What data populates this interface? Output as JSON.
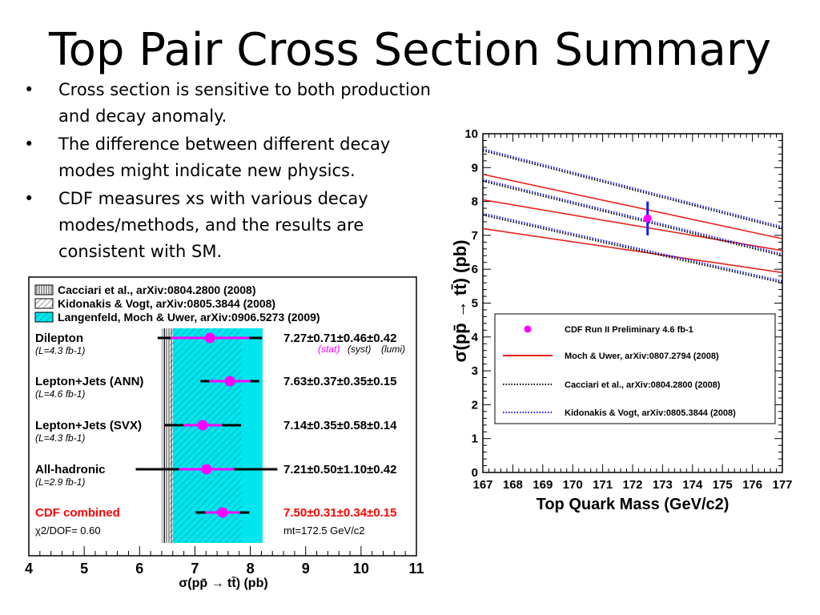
{
  "slide": {
    "title": "Top Pair Cross Section Summary",
    "bullets": [
      "Cross section is sensitive to both production and decay anomaly.",
      "The difference between different decay modes might indicate new physics.",
      "CDF measures xs with various decay modes/methods, and the results are consistent with SM."
    ]
  },
  "chart_data": [
    {
      "type": "scatter",
      "xlabel": "σ(pp̄ → tt̄) (pb)",
      "xlim": [
        4,
        11
      ],
      "x_ticks": [
        "4",
        "5",
        "6",
        "7",
        "8",
        "9",
        "10",
        "11"
      ],
      "legend": [
        {
          "label": "Cacciari et al., arXiv:0804.2800 (2008)",
          "band": [
            6.45,
            6.55
          ]
        },
        {
          "label": "Kidonakis & Vogt, arXiv:0805.3844 (2008)",
          "band": [
            6.55,
            6.6
          ]
        },
        {
          "label": "Langenfeld, Moch & Uwer, arXiv:0906.5273 (2009)",
          "band": [
            6.6,
            8.2
          ]
        }
      ],
      "measurements": [
        {
          "name": "Dilepton",
          "lumi": "(L=4.3 fb-1)",
          "value": 7.27,
          "stat": 0.71,
          "syst": 0.46,
          "lumi_err": 0.42,
          "result": "7.27±0.71±0.46±0.42",
          "color": "#000000"
        },
        {
          "name": "Lepton+Jets (ANN)",
          "lumi": "(L=4.6 fb-1)",
          "value": 7.63,
          "stat": 0.37,
          "syst": 0.35,
          "lumi_err": 0.15,
          "result": "7.63±0.37±0.35±0.15",
          "color": "#000000"
        },
        {
          "name": "Lepton+Jets (SVX)",
          "lumi": "(L=4.3 fb-1)",
          "value": 7.14,
          "stat": 0.35,
          "syst": 0.58,
          "lumi_err": 0.14,
          "result": "7.14±0.35±0.58±0.14",
          "color": "#000000"
        },
        {
          "name": "All-hadronic",
          "lumi": "(L=2.9 fb-1)",
          "value": 7.21,
          "stat": 0.5,
          "syst": 1.1,
          "lumi_err": 0.42,
          "result": "7.21±0.50±1.10±0.42",
          "color": "#000000"
        },
        {
          "name": "CDF combined",
          "lumi": "",
          "value": 7.5,
          "stat": 0.31,
          "syst": 0.34,
          "lumi_err": 0.15,
          "result": "7.50±0.31±0.34±0.15",
          "color": "#ff0000"
        }
      ],
      "error_legend": {
        "stat": "(stat)",
        "syst": "(syst)",
        "lumi": "(lumi)"
      },
      "chi2": "χ2/DOF= 0.60",
      "mt": "mt=172.5 GeV/c2"
    },
    {
      "type": "line",
      "xlabel": "Top Quark Mass (GeV/c2)",
      "ylabel": "σ(pp̄ → tt̄) (pb)",
      "xlim": [
        167,
        177
      ],
      "ylim": [
        0,
        10
      ],
      "x_ticks": [
        "167",
        "168",
        "169",
        "170",
        "171",
        "172",
        "173",
        "174",
        "175",
        "176",
        "177"
      ],
      "y_ticks": [
        "0",
        "1",
        "2",
        "3",
        "4",
        "5",
        "6",
        "7",
        "8",
        "9",
        "10"
      ],
      "x": [
        167,
        177
      ],
      "series": [
        {
          "name": "Moch & Uwer, arXiv:0807.2794 (2008)",
          "style": "solid",
          "color": "#e8231b",
          "lines": [
            {
              "x": [
                167,
                177
              ],
              "y": [
                8.8,
                6.9
              ]
            },
            {
              "x": [
                167,
                177
              ],
              "y": [
                8.05,
                6.55
              ]
            },
            {
              "x": [
                167,
                177
              ],
              "y": [
                7.2,
                5.9
              ]
            }
          ]
        },
        {
          "name": "Cacciari et al., arXiv:0804.2800 (2008)",
          "style": "dotted",
          "color": "#000000",
          "lines": [
            {
              "x": [
                167,
                177
              ],
              "y": [
                9.5,
                7.2
              ]
            },
            {
              "x": [
                167,
                177
              ],
              "y": [
                8.6,
                6.4
              ]
            },
            {
              "x": [
                167,
                177
              ],
              "y": [
                7.6,
                5.6
              ]
            }
          ]
        },
        {
          "name": "Kidonakis & Vogt, arXiv:0805.3844 (2008)",
          "style": "dotted",
          "color": "#1a1aff",
          "lines": [
            {
              "x": [
                167,
                177
              ],
              "y": [
                9.55,
                7.25
              ]
            },
            {
              "x": [
                167,
                177
              ],
              "y": [
                8.65,
                6.45
              ]
            },
            {
              "x": [
                167,
                177
              ],
              "y": [
                7.65,
                5.65
              ]
            }
          ]
        }
      ],
      "point": {
        "name": "CDF Run II Preliminary 4.6 fb-1",
        "x": 172.5,
        "y": 7.5,
        "yerr": 0.5,
        "color": "#ff00ff"
      }
    }
  ]
}
